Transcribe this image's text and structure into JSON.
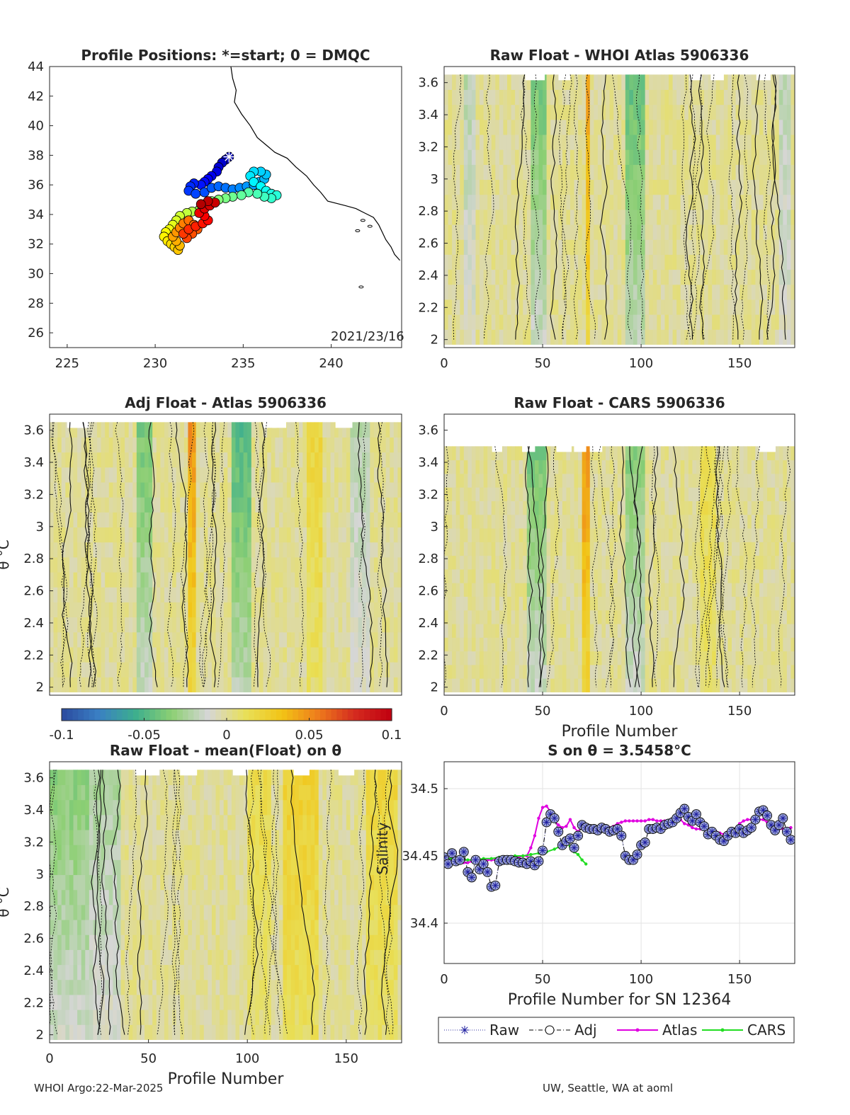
{
  "footer": {
    "left": "WHOI Argo:22-Mar-2025",
    "right": "UW, Seattle, WA at aoml"
  },
  "colorbar": {
    "ticks": [
      "-0.1",
      "-0.05",
      "0",
      "0.05",
      "0.1"
    ],
    "range": [
      -0.1,
      0.1
    ],
    "colors": [
      "#2b4a9e",
      "#3a7fc4",
      "#3cae8e",
      "#8ccf73",
      "#d6d6d6",
      "#e8e05a",
      "#f2c416",
      "#ee7b1c",
      "#d42a1f",
      "#c00010"
    ]
  },
  "chart_data": [
    {
      "type": "scatter",
      "id": "map",
      "title": "Profile Positions: *=start; 0 = DMQC",
      "xlim": [
        224,
        244
      ],
      "ylim": [
        25,
        44
      ],
      "xticks": [
        "225",
        "230",
        "235",
        "240"
      ],
      "yticks": [
        "26",
        "28",
        "30",
        "32",
        "34",
        "36",
        "38",
        "40",
        "42",
        "44"
      ],
      "annotation": "2021/23/16",
      "start": [
        234.2,
        37.9
      ],
      "track": [
        [
          234.2,
          37.9
        ],
        [
          234.0,
          37.7
        ],
        [
          233.8,
          37.5
        ],
        [
          233.6,
          37.2
        ],
        [
          233.5,
          36.9
        ],
        [
          233.2,
          36.6
        ],
        [
          233.0,
          36.4
        ],
        [
          232.8,
          36.2
        ],
        [
          232.6,
          36.0
        ],
        [
          232.2,
          36.1
        ],
        [
          232.0,
          35.9
        ],
        [
          231.9,
          35.6
        ],
        [
          232.3,
          35.4
        ],
        [
          232.8,
          35.5
        ],
        [
          233.2,
          35.8
        ],
        [
          233.6,
          35.9
        ],
        [
          234.0,
          35.8
        ],
        [
          234.4,
          35.7
        ],
        [
          234.8,
          35.8
        ],
        [
          235.2,
          35.9
        ],
        [
          235.6,
          36.0
        ],
        [
          235.9,
          36.2
        ],
        [
          236.2,
          36.4
        ],
        [
          236.3,
          36.7
        ],
        [
          236.0,
          36.9
        ],
        [
          235.6,
          36.9
        ],
        [
          235.4,
          36.6
        ],
        [
          235.6,
          36.2
        ],
        [
          236.0,
          35.9
        ],
        [
          236.3,
          35.6
        ],
        [
          236.6,
          35.4
        ],
        [
          236.9,
          35.3
        ],
        [
          236.6,
          35.1
        ],
        [
          236.2,
          35.2
        ],
        [
          235.8,
          35.4
        ],
        [
          235.3,
          35.5
        ],
        [
          234.9,
          35.3
        ],
        [
          234.4,
          35.2
        ],
        [
          234.0,
          35.1
        ],
        [
          233.6,
          35.0
        ],
        [
          233.2,
          34.9
        ],
        [
          232.9,
          34.6
        ],
        [
          232.5,
          34.3
        ],
        [
          232.1,
          34.2
        ],
        [
          231.8,
          34.1
        ],
        [
          231.4,
          33.9
        ],
        [
          231.2,
          33.6
        ],
        [
          231.0,
          33.3
        ],
        [
          230.8,
          33.0
        ],
        [
          230.6,
          32.8
        ],
        [
          230.5,
          32.5
        ],
        [
          230.7,
          32.2
        ],
        [
          230.9,
          32.0
        ],
        [
          231.1,
          31.8
        ],
        [
          231.3,
          31.6
        ],
        [
          231.4,
          31.9
        ],
        [
          231.2,
          32.2
        ],
        [
          231.0,
          32.5
        ],
        [
          231.2,
          32.8
        ],
        [
          231.4,
          33.1
        ],
        [
          231.6,
          33.4
        ],
        [
          231.9,
          33.6
        ],
        [
          232.2,
          33.3
        ],
        [
          232.4,
          33.0
        ],
        [
          232.1,
          32.7
        ],
        [
          231.8,
          32.4
        ],
        [
          231.6,
          32.7
        ],
        [
          231.9,
          33.0
        ],
        [
          232.3,
          33.2
        ],
        [
          232.7,
          33.4
        ],
        [
          233.0,
          33.6
        ],
        [
          232.8,
          33.9
        ],
        [
          232.5,
          34.1
        ],
        [
          232.8,
          34.4
        ],
        [
          233.1,
          34.6
        ],
        [
          233.4,
          34.8
        ],
        [
          233.0,
          34.9
        ],
        [
          232.6,
          34.7
        ]
      ],
      "coast": [
        [
          234.3,
          44.0
        ],
        [
          234.4,
          43.2
        ],
        [
          234.6,
          42.4
        ],
        [
          234.5,
          41.6
        ],
        [
          234.9,
          40.8
        ],
        [
          235.4,
          40.0
        ],
        [
          235.8,
          39.2
        ],
        [
          236.3,
          38.7
        ],
        [
          236.8,
          38.2
        ],
        [
          237.5,
          37.8
        ],
        [
          238.0,
          37.2
        ],
        [
          238.6,
          36.6
        ],
        [
          239.0,
          36.0
        ],
        [
          239.4,
          35.5
        ],
        [
          239.8,
          34.9
        ],
        [
          240.8,
          34.6
        ],
        [
          241.4,
          34.4
        ],
        [
          241.9,
          34.1
        ],
        [
          242.4,
          33.8
        ],
        [
          242.7,
          33.3
        ],
        [
          242.9,
          32.8
        ],
        [
          243.1,
          32.3
        ],
        [
          243.4,
          31.8
        ],
        [
          243.6,
          31.3
        ],
        [
          243.9,
          30.9
        ]
      ]
    },
    {
      "type": "heatmap",
      "id": "p2",
      "title": "Raw Float - WHOI Atlas  5906336",
      "xlim": [
        0,
        178
      ],
      "ylim": [
        1.95,
        3.7
      ],
      "xticks": [
        "0",
        "50",
        "100",
        "150"
      ],
      "yticks": [
        "2",
        "2.2",
        "2.4",
        "2.6",
        "2.8",
        "3",
        "3.2",
        "3.4",
        "3.6"
      ],
      "ylabel": "",
      "xlabel": "",
      "top": 3.65,
      "hot_columns": [
        [
          44,
          50,
          -0.04
        ],
        [
          92,
          100,
          -0.045
        ],
        [
          71,
          73,
          0.05
        ],
        [
          170,
          174,
          -0.02
        ],
        [
          10,
          14,
          -0.02
        ]
      ]
    },
    {
      "type": "heatmap",
      "id": "p3",
      "title": "Adj Float - Atlas  5906336",
      "xlim": [
        0,
        178
      ],
      "ylim": [
        1.95,
        3.7
      ],
      "xticks": [],
      "yticks": [
        "2",
        "2.2",
        "2.4",
        "2.6",
        "2.8",
        "3",
        "3.2",
        "3.4",
        "3.6"
      ],
      "ylabel": "θ °C",
      "xlabel": "",
      "top": 3.65,
      "hot_columns": [
        [
          44,
          50,
          -0.04
        ],
        [
          92,
          100,
          -0.05
        ],
        [
          70,
          73,
          0.05
        ],
        [
          130,
          136,
          0.02
        ],
        [
          152,
          160,
          -0.02
        ]
      ]
    },
    {
      "type": "heatmap",
      "id": "p4",
      "title": "Raw Float - CARS  5906336",
      "xlim": [
        0,
        178
      ],
      "ylim": [
        1.95,
        3.7
      ],
      "xticks": [
        "0",
        "50",
        "100",
        "150"
      ],
      "yticks": [
        "2",
        "2.2",
        "2.4",
        "2.6",
        "2.8",
        "3",
        "3.2",
        "3.4",
        "3.6"
      ],
      "ylabel": "",
      "xlabel": "Profile Number",
      "top": 3.5,
      "hot_columns": [
        [
          42,
          50,
          -0.04
        ],
        [
          92,
          100,
          -0.035
        ],
        [
          69,
          73,
          0.05
        ],
        [
          130,
          136,
          0.015
        ]
      ]
    },
    {
      "type": "heatmap",
      "id": "p5",
      "title": "Raw Float - mean(Float) on θ",
      "xlim": [
        0,
        178
      ],
      "ylim": [
        1.95,
        3.7
      ],
      "xticks": [
        "0",
        "50",
        "100",
        "150"
      ],
      "yticks": [
        "2",
        "2.2",
        "2.4",
        "2.6",
        "2.8",
        "3",
        "3.2",
        "3.4",
        "3.6"
      ],
      "ylabel": "θ °C",
      "xlabel": "Profile Number",
      "top": 3.65,
      "hot_columns": [
        [
          0,
          20,
          -0.035
        ],
        [
          20,
          35,
          -0.025
        ],
        [
          100,
          110,
          0.015
        ],
        [
          118,
          135,
          0.025
        ],
        [
          160,
          175,
          0.02
        ]
      ]
    },
    {
      "type": "line",
      "id": "p6",
      "title": "S on θ = 3.5458°C",
      "xlim": [
        0,
        178
      ],
      "ylim": [
        34.37,
        34.52
      ],
      "xticks": [
        "0",
        "50",
        "100",
        "150"
      ],
      "yticks": [
        "34.4",
        "34.45",
        "34.5"
      ],
      "ylabel": "Salinity",
      "xlabel": "Profile Number for SN 12364",
      "legend": [
        "Raw",
        "Adj",
        "Atlas",
        "CARS"
      ],
      "x": [
        0,
        2,
        4,
        6,
        8,
        10,
        12,
        14,
        16,
        18,
        20,
        22,
        24,
        26,
        28,
        30,
        32,
        34,
        36,
        38,
        40,
        42,
        44,
        46,
        48,
        50,
        52,
        54,
        56,
        58,
        60,
        62,
        64,
        66,
        68,
        70,
        72,
        74,
        76,
        78,
        80,
        82,
        84,
        86,
        88,
        90,
        92,
        94,
        96,
        98,
        100,
        102,
        104,
        106,
        108,
        110,
        112,
        114,
        116,
        118,
        120,
        122,
        124,
        126,
        128,
        130,
        132,
        134,
        136,
        138,
        140,
        142,
        144,
        146,
        148,
        150,
        152,
        154,
        156,
        158,
        160,
        162,
        164,
        166,
        168,
        170,
        172,
        174,
        176
      ],
      "raw": [
        34.449,
        34.444,
        34.452,
        34.446,
        34.447,
        34.453,
        34.438,
        34.434,
        34.447,
        34.44,
        34.444,
        34.438,
        34.427,
        34.428,
        34.446,
        34.447,
        34.447,
        34.447,
        34.446,
        34.445,
        34.445,
        34.444,
        34.446,
        34.443,
        34.446,
        34.454,
        34.475,
        34.481,
        34.478,
        34.468,
        34.458,
        34.461,
        34.463,
        34.456,
        34.465,
        34.473,
        34.471,
        34.47,
        34.47,
        34.469,
        34.471,
        34.47,
        34.468,
        34.469,
        34.47,
        34.465,
        34.45,
        34.447,
        34.447,
        34.451,
        34.458,
        34.46,
        34.47,
        34.47,
        34.471,
        34.47,
        34.473,
        34.474,
        34.475,
        34.478,
        34.482,
        34.485,
        34.479,
        34.476,
        34.481,
        34.475,
        34.472,
        34.466,
        34.468,
        34.465,
        34.462,
        34.461,
        34.465,
        34.468,
        34.467,
        34.47,
        34.467,
        34.469,
        34.471,
        34.477,
        34.483,
        34.484,
        34.48,
        34.473,
        34.469,
        34.473,
        34.478,
        34.468,
        34.462
      ],
      "atlas": [
        34.446,
        34.445,
        34.445,
        34.445,
        34.445,
        34.445,
        34.445,
        34.446,
        34.446,
        34.446,
        34.447,
        34.447,
        34.447,
        34.447,
        34.448,
        34.448,
        34.448,
        34.449,
        34.449,
        34.449,
        34.45,
        34.45,
        34.456,
        34.465,
        34.478,
        34.486,
        34.487,
        34.483,
        34.476,
        34.473,
        34.471,
        34.472,
        34.477,
        34.471,
        34.468,
        34.472,
        34.47,
        34.471,
        34.471,
        34.471,
        34.471,
        34.471,
        34.471,
        34.472,
        34.474,
        34.475,
        34.476,
        34.476,
        34.476,
        34.476,
        34.476,
        34.476,
        34.477,
        34.477,
        34.476,
        34.476,
        34.476,
        34.476,
        34.477,
        34.477,
        34.477,
        34.474,
        34.473,
        34.471,
        34.47,
        34.47,
        34.471,
        34.47,
        34.47,
        34.468,
        34.467,
        34.466,
        34.465,
        34.467,
        34.47,
        34.474,
        34.476,
        34.477,
        34.477,
        34.477,
        34.477,
        34.477,
        34.475,
        34.472,
        34.471,
        34.47,
        34.47,
        34.47,
        34.471
      ],
      "cars_x": [
        0,
        4,
        8,
        12,
        16,
        20,
        24,
        28,
        32,
        36,
        40,
        44,
        48,
        52,
        56,
        60,
        62,
        64,
        66,
        68,
        70,
        72
      ],
      "cars": [
        34.448,
        34.448,
        34.447,
        34.447,
        34.447,
        34.448,
        34.448,
        34.449,
        34.449,
        34.45,
        34.45,
        34.451,
        34.452,
        34.453,
        34.455,
        34.458,
        34.46,
        34.457,
        34.453,
        34.451,
        34.447,
        34.444
      ]
    }
  ]
}
